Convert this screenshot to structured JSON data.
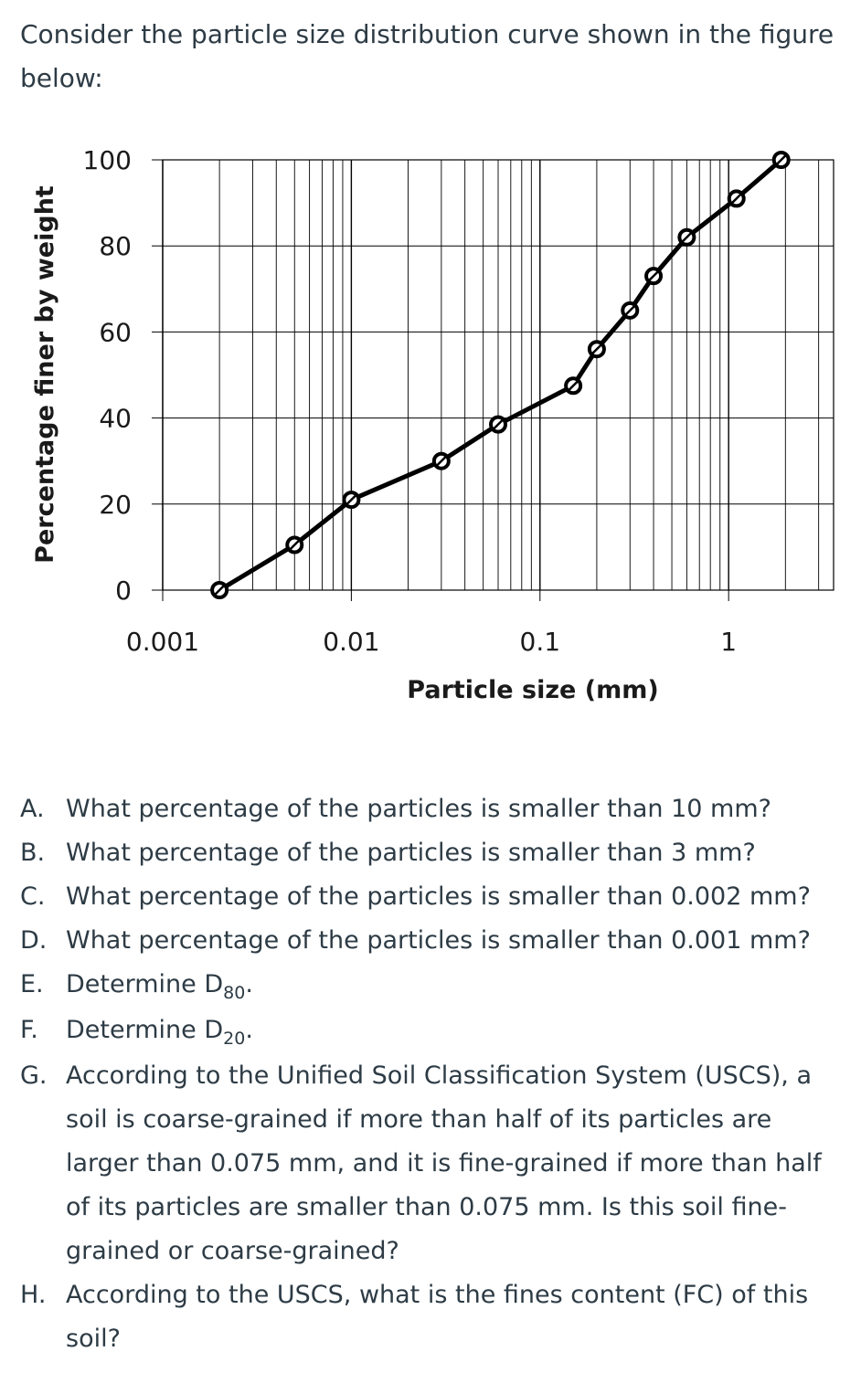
{
  "intro_text": "Consider the particle size distribution curve shown in the figure below:",
  "questions": [
    {
      "letter": "A.",
      "text": "What percentage of the particles is smaller than 10 mm?"
    },
    {
      "letter": "B.",
      "text": "What percentage of the particles is smaller than 3 mm?"
    },
    {
      "letter": "C.",
      "text": "What percentage of the particles is smaller than 0.002 mm?"
    },
    {
      "letter": "D.",
      "text": "What percentage of the particles is smaller than 0.001 mm?"
    },
    {
      "letter": "E.",
      "text": "Determine D",
      "sub": "80",
      "suffix": "."
    },
    {
      "letter": "F.",
      "text": "Determine D",
      "sub": "20",
      "suffix": "."
    },
    {
      "letter": "G.",
      "text": "According to the Unified Soil Classification System (USCS), a soil is coarse-grained if more than half of its particles are larger than 0.075 mm, and it is fine-grained if more than half of its particles are smaller than 0.075 mm. Is this soil fine-grained or coarse-grained?"
    },
    {
      "letter": "H.",
      "text": "According to the USCS, what is the fines content (FC) of this soil?"
    }
  ],
  "chart_data": {
    "type": "line",
    "title": "",
    "xlabel": "Particle size (mm)",
    "ylabel": "Percentage finer by weight",
    "x_scale": "log",
    "xlim": [
      0.001,
      3.6
    ],
    "ylim": [
      0,
      100
    ],
    "x_ticks": [
      0.001,
      0.01,
      0.1,
      1
    ],
    "x_tick_labels": [
      "0.001",
      "0.01",
      "0.1",
      "1"
    ],
    "y_ticks": [
      0,
      20,
      40,
      60,
      80,
      100
    ],
    "y_tick_labels": [
      "0",
      "20",
      "40",
      "60",
      "80",
      "100"
    ],
    "grid": true,
    "line_color": "#000000",
    "series": [
      {
        "x": [
          0.002,
          0.005,
          0.01,
          0.03,
          0.06,
          0.15,
          0.2,
          0.3,
          0.4,
          0.6,
          1.1,
          1.9
        ],
        "y": [
          0,
          10.5,
          21,
          30,
          38.5,
          47.5,
          56,
          65,
          73,
          82,
          91,
          100
        ]
      }
    ]
  }
}
